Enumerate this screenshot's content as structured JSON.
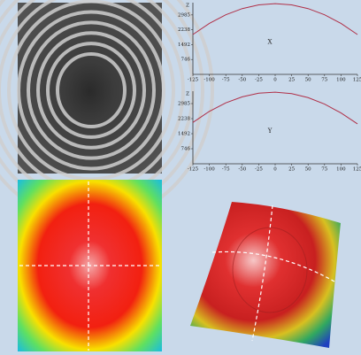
{
  "chart_data": [
    {
      "type": "line",
      "axis_label": "Z",
      "label": "X",
      "x": [
        -125,
        -100,
        -75,
        -50,
        -25,
        0,
        25,
        50,
        75,
        100,
        125
      ],
      "series": [
        {
          "color": "#b03048",
          "values": [
            2000,
            2558,
            2992,
            3302,
            3488,
            3550,
            3488,
            3302,
            2992,
            2558,
            2000
          ]
        }
      ],
      "xlim": [
        -125,
        125
      ],
      "xticks": [
        -125,
        -100,
        -75,
        -50,
        -25,
        0,
        25,
        50,
        75,
        100,
        125
      ],
      "ylim": [
        0,
        3600
      ],
      "yticks": [
        746,
        1492,
        2238,
        2985
      ]
    },
    {
      "type": "line",
      "axis_label": "Z",
      "label": "Y",
      "x": [
        -125,
        -100,
        -75,
        -50,
        -25,
        0,
        25,
        50,
        75,
        100,
        125
      ],
      "series": [
        {
          "color": "#b03048",
          "values": [
            2050,
            2600,
            3020,
            3320,
            3500,
            3550,
            3480,
            3280,
            2960,
            2520,
            1980
          ]
        }
      ],
      "xlim": [
        -125,
        125
      ],
      "xticks": [
        -125,
        -100,
        -75,
        -50,
        -25,
        0,
        25,
        50,
        75,
        100,
        125
      ],
      "ylim": [
        0,
        3600
      ],
      "yticks": [
        746,
        1492,
        2238,
        2985
      ]
    }
  ]
}
